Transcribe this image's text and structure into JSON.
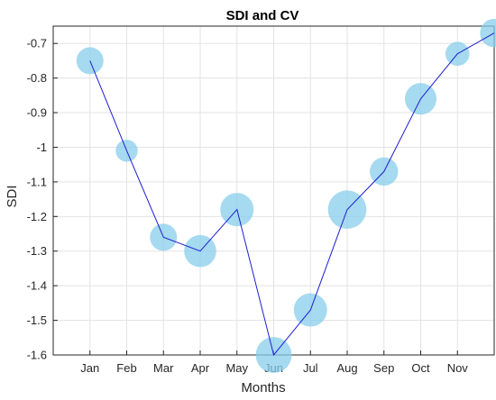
{
  "chart_data": {
    "type": "scatter",
    "title": "SDI and CV",
    "xlabel": "Months",
    "ylabel": "SDI",
    "categories": [
      "Jan",
      "Feb",
      "Mar",
      "Apr",
      "May",
      "Jun",
      "Jul",
      "Aug",
      "Sep",
      "Oct",
      "Nov",
      ""
    ],
    "xlim": [
      0,
      12
    ],
    "ylim": [
      -1.6,
      -0.65
    ],
    "yticks": [
      -1.6,
      -1.5,
      -1.4,
      -1.3,
      -1.2,
      -1.1,
      -1.0,
      -0.9,
      -0.8,
      -0.7
    ],
    "ytick_labels": [
      "-1.6",
      "-1.5",
      "-1.4",
      "-1.3",
      "-1.2",
      "-1.1",
      "-1",
      "-0.9",
      "-0.8",
      "-0.7"
    ],
    "grid": true,
    "series": [
      {
        "values": [
          -0.75,
          -1.01,
          -1.26,
          -1.3,
          -1.18,
          -1.6,
          -1.47,
          -1.18,
          -1.07,
          -0.86,
          -0.73,
          -0.67
        ],
        "bubble_size_relative": [
          0.5,
          0.3,
          0.5,
          0.7,
          0.75,
          0.85,
          0.75,
          0.95,
          0.55,
          0.68,
          0.38,
          0.55
        ]
      }
    ],
    "line_color": "#1f1fd0",
    "bubble_color": "#87cdeb"
  }
}
